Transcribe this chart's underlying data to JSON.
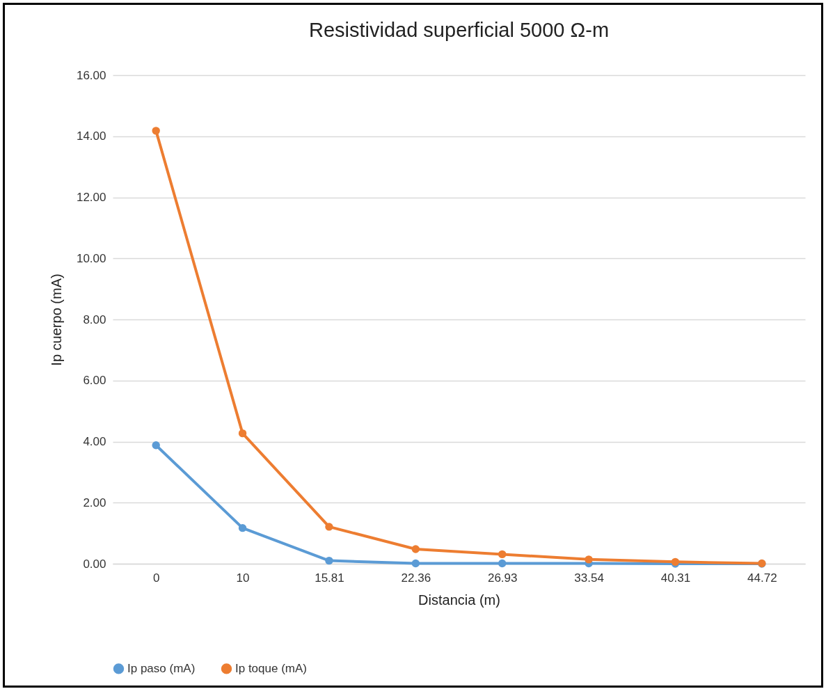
{
  "chart_data": {
    "type": "line",
    "title": "Resistividad superficial 5000 Ω-m",
    "xlabel": "Distancia (m)",
    "ylabel": "Ip cuerpo (mA)",
    "categories": [
      "0",
      "10",
      "15.81",
      "22.36",
      "26.93",
      "33.54",
      "40.31",
      "44.72"
    ],
    "series": [
      {
        "name": "Ip paso (mA)",
        "color": "#5b9bd5",
        "values": [
          3.88,
          1.17,
          0.1,
          0.01,
          0.01,
          0.01,
          0,
          0
        ]
      },
      {
        "name": "Ip toque (mA)",
        "color": "#ed7d31",
        "values": [
          14.18,
          4.27,
          1.21,
          0.48,
          0.31,
          0.14,
          0.06,
          0.01
        ]
      }
    ],
    "ylim": [
      0,
      16
    ],
    "yticks": [
      {
        "value": 0,
        "label": "0.00"
      },
      {
        "value": 2,
        "label": "2.00"
      },
      {
        "value": 4,
        "label": "4.00"
      },
      {
        "value": 6,
        "label": "6.00"
      },
      {
        "value": 8,
        "label": "8.00"
      },
      {
        "value": 10,
        "label": "10.00"
      },
      {
        "value": 12,
        "label": "12.00"
      },
      {
        "value": 14,
        "label": "14.00"
      },
      {
        "value": 16,
        "label": "16.00"
      }
    ],
    "grid": "y",
    "legend": "bottom",
    "marker": "circle",
    "line_style": "solid"
  }
}
